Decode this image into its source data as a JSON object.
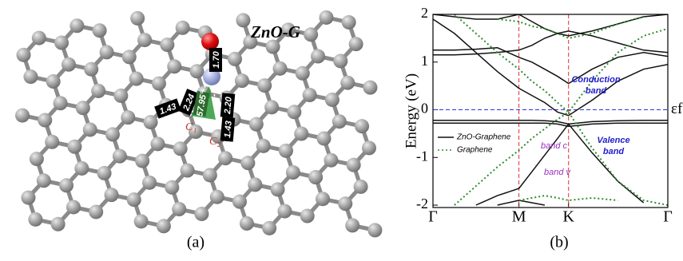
{
  "figure_a": {
    "title": "ZnO-G",
    "panel_label": "(a)",
    "bond_labels": [
      "1.70",
      "2.24",
      "1.43",
      "57.95°",
      "2.20",
      "1.43"
    ],
    "atom_labels": [
      "C₁",
      "C₂"
    ]
  },
  "chart_data": {
    "type": "line",
    "panel_label": "(b)",
    "y_label": "Energy (eV)",
    "xlim": [
      0,
      2.732
    ],
    "ylim": [
      -2.05,
      2.0
    ],
    "xticks": [
      {
        "value": 0,
        "label": "Γ"
      },
      {
        "value": 1,
        "label": "M"
      },
      {
        "value": 1.577,
        "label": "K"
      },
      {
        "value": 2.732,
        "label": "Γ"
      }
    ],
    "yticks": [
      -2,
      -1,
      0,
      1,
      2
    ],
    "fermi_label": "εf",
    "fermi_level": 0,
    "x": [
      0,
      0.25,
      0.5,
      0.75,
      1,
      1.15,
      1.3,
      1.45,
      1.577,
      1.85,
      2.15,
      2.45,
      2.732
    ],
    "series": [
      {
        "name": "ZnO-Graphene",
        "color": "#111111",
        "dash": "solid",
        "bands": [
          [
            1.9,
            1.6,
            1.2,
            0.8,
            0.45,
            0.3,
            0.15,
            -0.05,
            -0.12,
            0.2,
            0.6,
            0.85,
            0.95
          ],
          [
            1.15,
            1.15,
            1.17,
            1.2,
            1.25,
            1.35,
            1.5,
            1.6,
            1.65,
            1.55,
            1.4,
            1.25,
            1.2
          ],
          [
            1.25,
            1.25,
            1.27,
            1.3,
            1.1,
            1.0,
            0.85,
            0.7,
            0.55,
            0.85,
            1.1,
            1.2,
            1.12
          ],
          [
            -0.22,
            -0.22,
            -0.22,
            -0.22,
            -0.22,
            -0.22,
            -0.23,
            -0.25,
            -0.3,
            -0.25,
            -0.23,
            -0.22,
            -0.22
          ],
          [
            -0.28,
            -0.28,
            -0.28,
            -0.28,
            -0.28,
            -0.28,
            -0.28,
            -0.3,
            -0.35,
            -0.3,
            -0.28,
            -0.28,
            -0.28
          ],
          [
            null,
            null,
            -2.0,
            -1.8,
            -1.65,
            -1.3,
            -0.95,
            -0.6,
            -0.3,
            -0.9,
            -1.5,
            -1.95,
            null
          ],
          [
            null,
            null,
            null,
            -2.0,
            -1.9,
            -1.95,
            -2.0,
            null,
            null,
            null,
            null,
            null,
            null
          ],
          [
            2.0,
            1.95,
            1.9,
            1.9,
            2.0,
            1.85,
            1.7,
            1.6,
            1.55,
            1.65,
            1.8,
            1.95,
            2.0
          ]
        ]
      },
      {
        "name": "Graphene",
        "color": "#2e8b2e",
        "dash": "dotted",
        "bands": [
          [
            null,
            2.0,
            1.6,
            1.2,
            0.85,
            0.6,
            0.4,
            0.15,
            -0.05,
            0.6,
            1.2,
            1.55,
            1.7
          ],
          [
            null,
            -2.0,
            -1.6,
            -1.2,
            -0.85,
            -0.6,
            -0.4,
            -0.2,
            -0.05,
            -0.8,
            -1.5,
            -1.9,
            -2.0
          ],
          [
            null,
            null,
            null,
            1.9,
            1.85,
            1.75,
            1.7,
            1.6,
            1.5,
            1.6,
            1.8,
            1.95,
            null
          ],
          [
            null,
            null,
            null,
            null,
            -1.9,
            -1.85,
            -1.8,
            -1.85,
            -1.9,
            -1.85,
            -1.9,
            null,
            null
          ]
        ]
      }
    ],
    "legend_loc": "lower left",
    "annotations": [
      {
        "lines": [
          "Conduction",
          "band"
        ],
        "color": "#2020d0"
      },
      {
        "lines": [
          "Valence",
          "band"
        ],
        "color": "#2020d0"
      },
      {
        "lines": [
          "band c"
        ],
        "color": "#9a30c0"
      },
      {
        "lines": [
          "band v"
        ],
        "color": "#9a30c0"
      }
    ]
  }
}
